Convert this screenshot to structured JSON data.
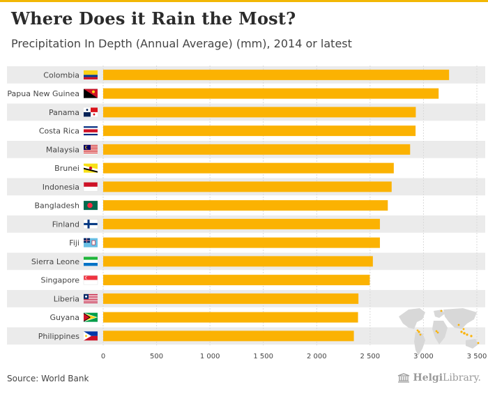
{
  "title": "Where Does it Rain the Most?",
  "subtitle": "Precipitation In Depth (Annual Average) (mm), 2014 or latest",
  "source": "Source: World Bank",
  "brand": {
    "name_bold": "Helgi",
    "name_regular": "Library."
  },
  "colors": {
    "bar": "#fbb202",
    "accent": "#f2b705",
    "row_band": "#ebebeb",
    "grid": "#d9d9d9",
    "text": "#444444",
    "map": "#d8d8d8",
    "map_highlight": "#fbb202"
  },
  "chart_data": {
    "type": "bar",
    "orientation": "horizontal",
    "title": "Where Does it Rain the Most?",
    "subtitle": "Precipitation In Depth (Annual Average) (mm), 2014 or latest",
    "xlabel": "",
    "ylabel": "",
    "xlim": [
      0,
      3500
    ],
    "grid": true,
    "ticks": [
      {
        "value": 0,
        "label": "0"
      },
      {
        "value": 500,
        "label": "500"
      },
      {
        "value": 1000,
        "label": "1 000"
      },
      {
        "value": 1500,
        "label": "1 500"
      },
      {
        "value": 2000,
        "label": "2 000"
      },
      {
        "value": 2500,
        "label": "2 500"
      },
      {
        "value": 3000,
        "label": "3 000"
      },
      {
        "value": 3500,
        "label": "3 500"
      }
    ],
    "categories": [
      "Colombia",
      "Papua New Guinea",
      "Panama",
      "Costa Rica",
      "Malaysia",
      "Brunei",
      "Indonesia",
      "Bangladesh",
      "Finland",
      "Fiji",
      "Sierra Leone",
      "Singapore",
      "Liberia",
      "Guyana",
      "Philippines"
    ],
    "values": [
      3240,
      3142,
      2928,
      2926,
      2875,
      2722,
      2702,
      2666,
      2592,
      2592,
      2526,
      2497,
      2391,
      2387,
      2348
    ],
    "flags": [
      "colombia-flag",
      "papua-new-guinea-flag",
      "panama-flag",
      "costa-rica-flag",
      "malaysia-flag",
      "brunei-flag",
      "indonesia-flag",
      "bangladesh-flag",
      "finland-flag",
      "fiji-flag",
      "sierra-leone-flag",
      "singapore-flag",
      "liberia-flag",
      "guyana-flag",
      "philippines-flag"
    ]
  }
}
